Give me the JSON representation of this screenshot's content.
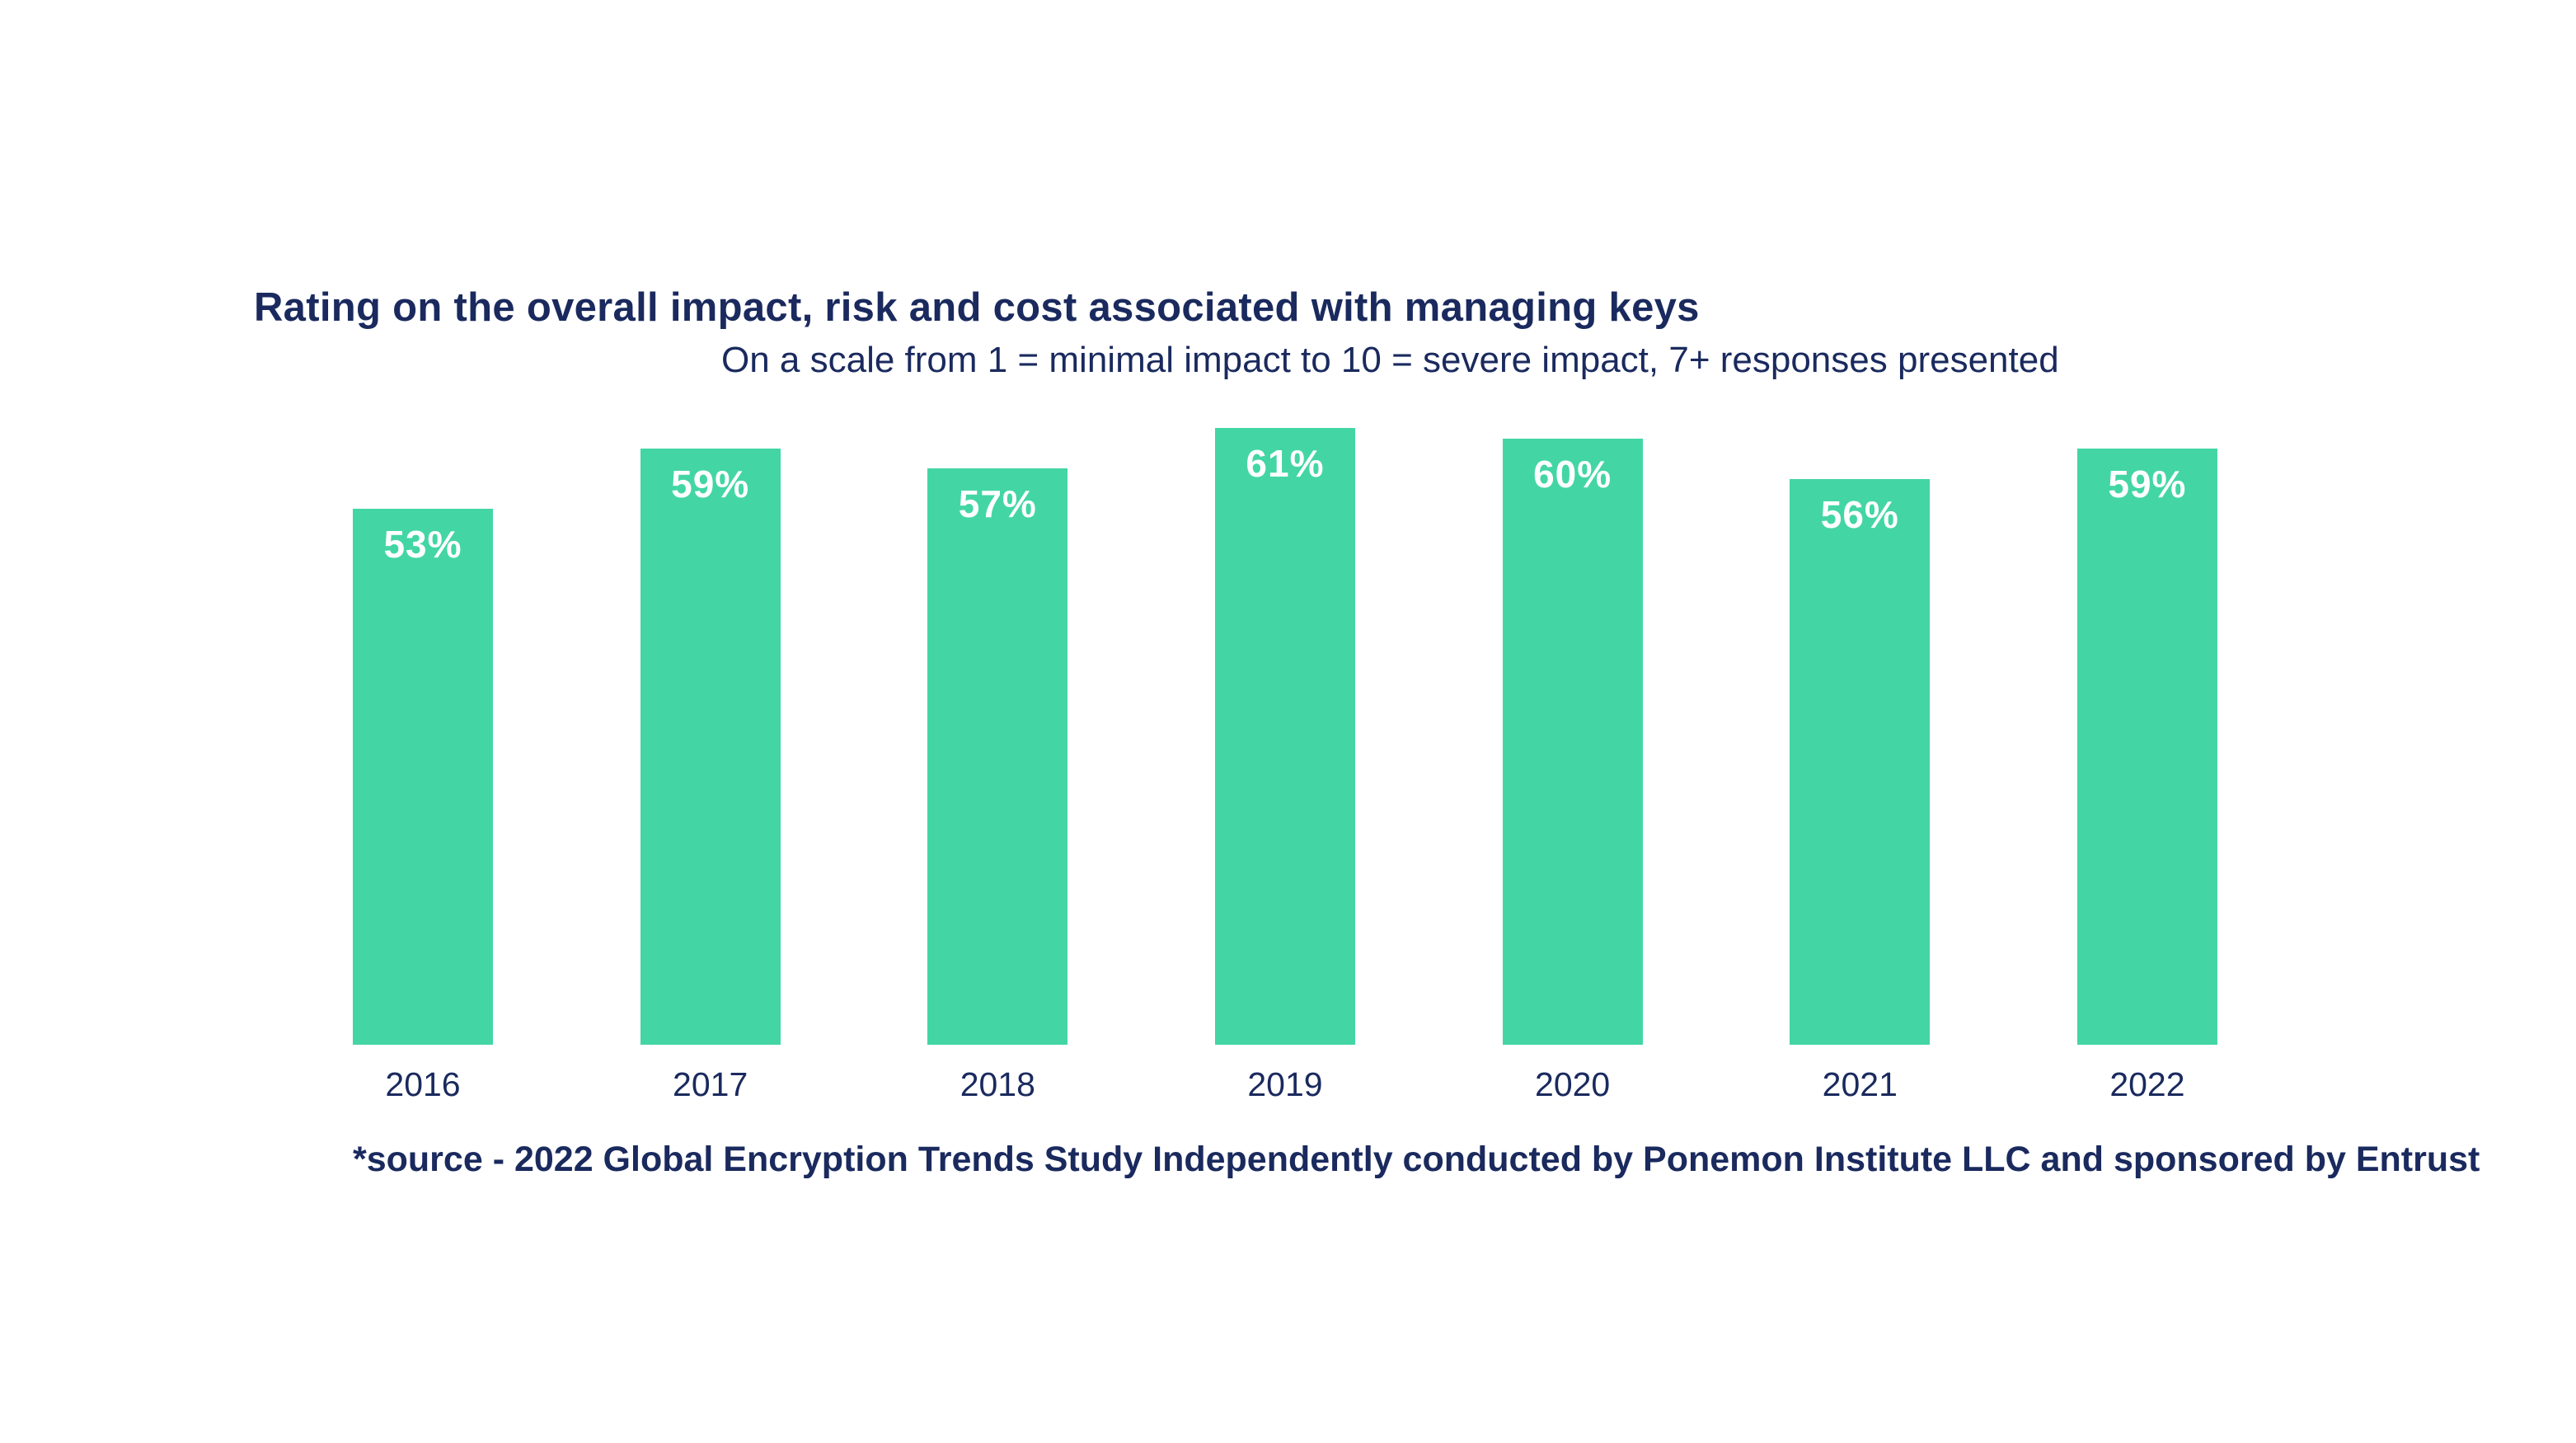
{
  "page": {
    "background": "#ffffff"
  },
  "colors": {
    "bar_green": "#43d6a4",
    "text_navy": "#1a2a5e",
    "bar_label_white": "#ffffff"
  },
  "chart_data": {
    "type": "bar",
    "title": "Rating on the overall impact, risk and cost associated with managing keys",
    "subtitle": "On a scale from 1 = minimal impact to 10 = severe impact, 7+ responses presented",
    "categories": [
      "2016",
      "2017",
      "2018",
      "2019",
      "2020",
      "2021",
      "2022"
    ],
    "values": [
      53,
      59,
      57,
      61,
      60,
      56,
      59
    ],
    "labels": [
      "53%",
      "59%",
      "57%",
      "61%",
      "60%",
      "56%",
      "59%"
    ],
    "value_label_position": "inside-top",
    "xlabel": "",
    "ylabel": "",
    "ylim": [
      0,
      62
    ],
    "grid": false,
    "legend": false,
    "source": "*source - 2022 Global Encryption Trends Study Independently conducted by Ponemon Institute LLC and sponsored by Entrust"
  }
}
